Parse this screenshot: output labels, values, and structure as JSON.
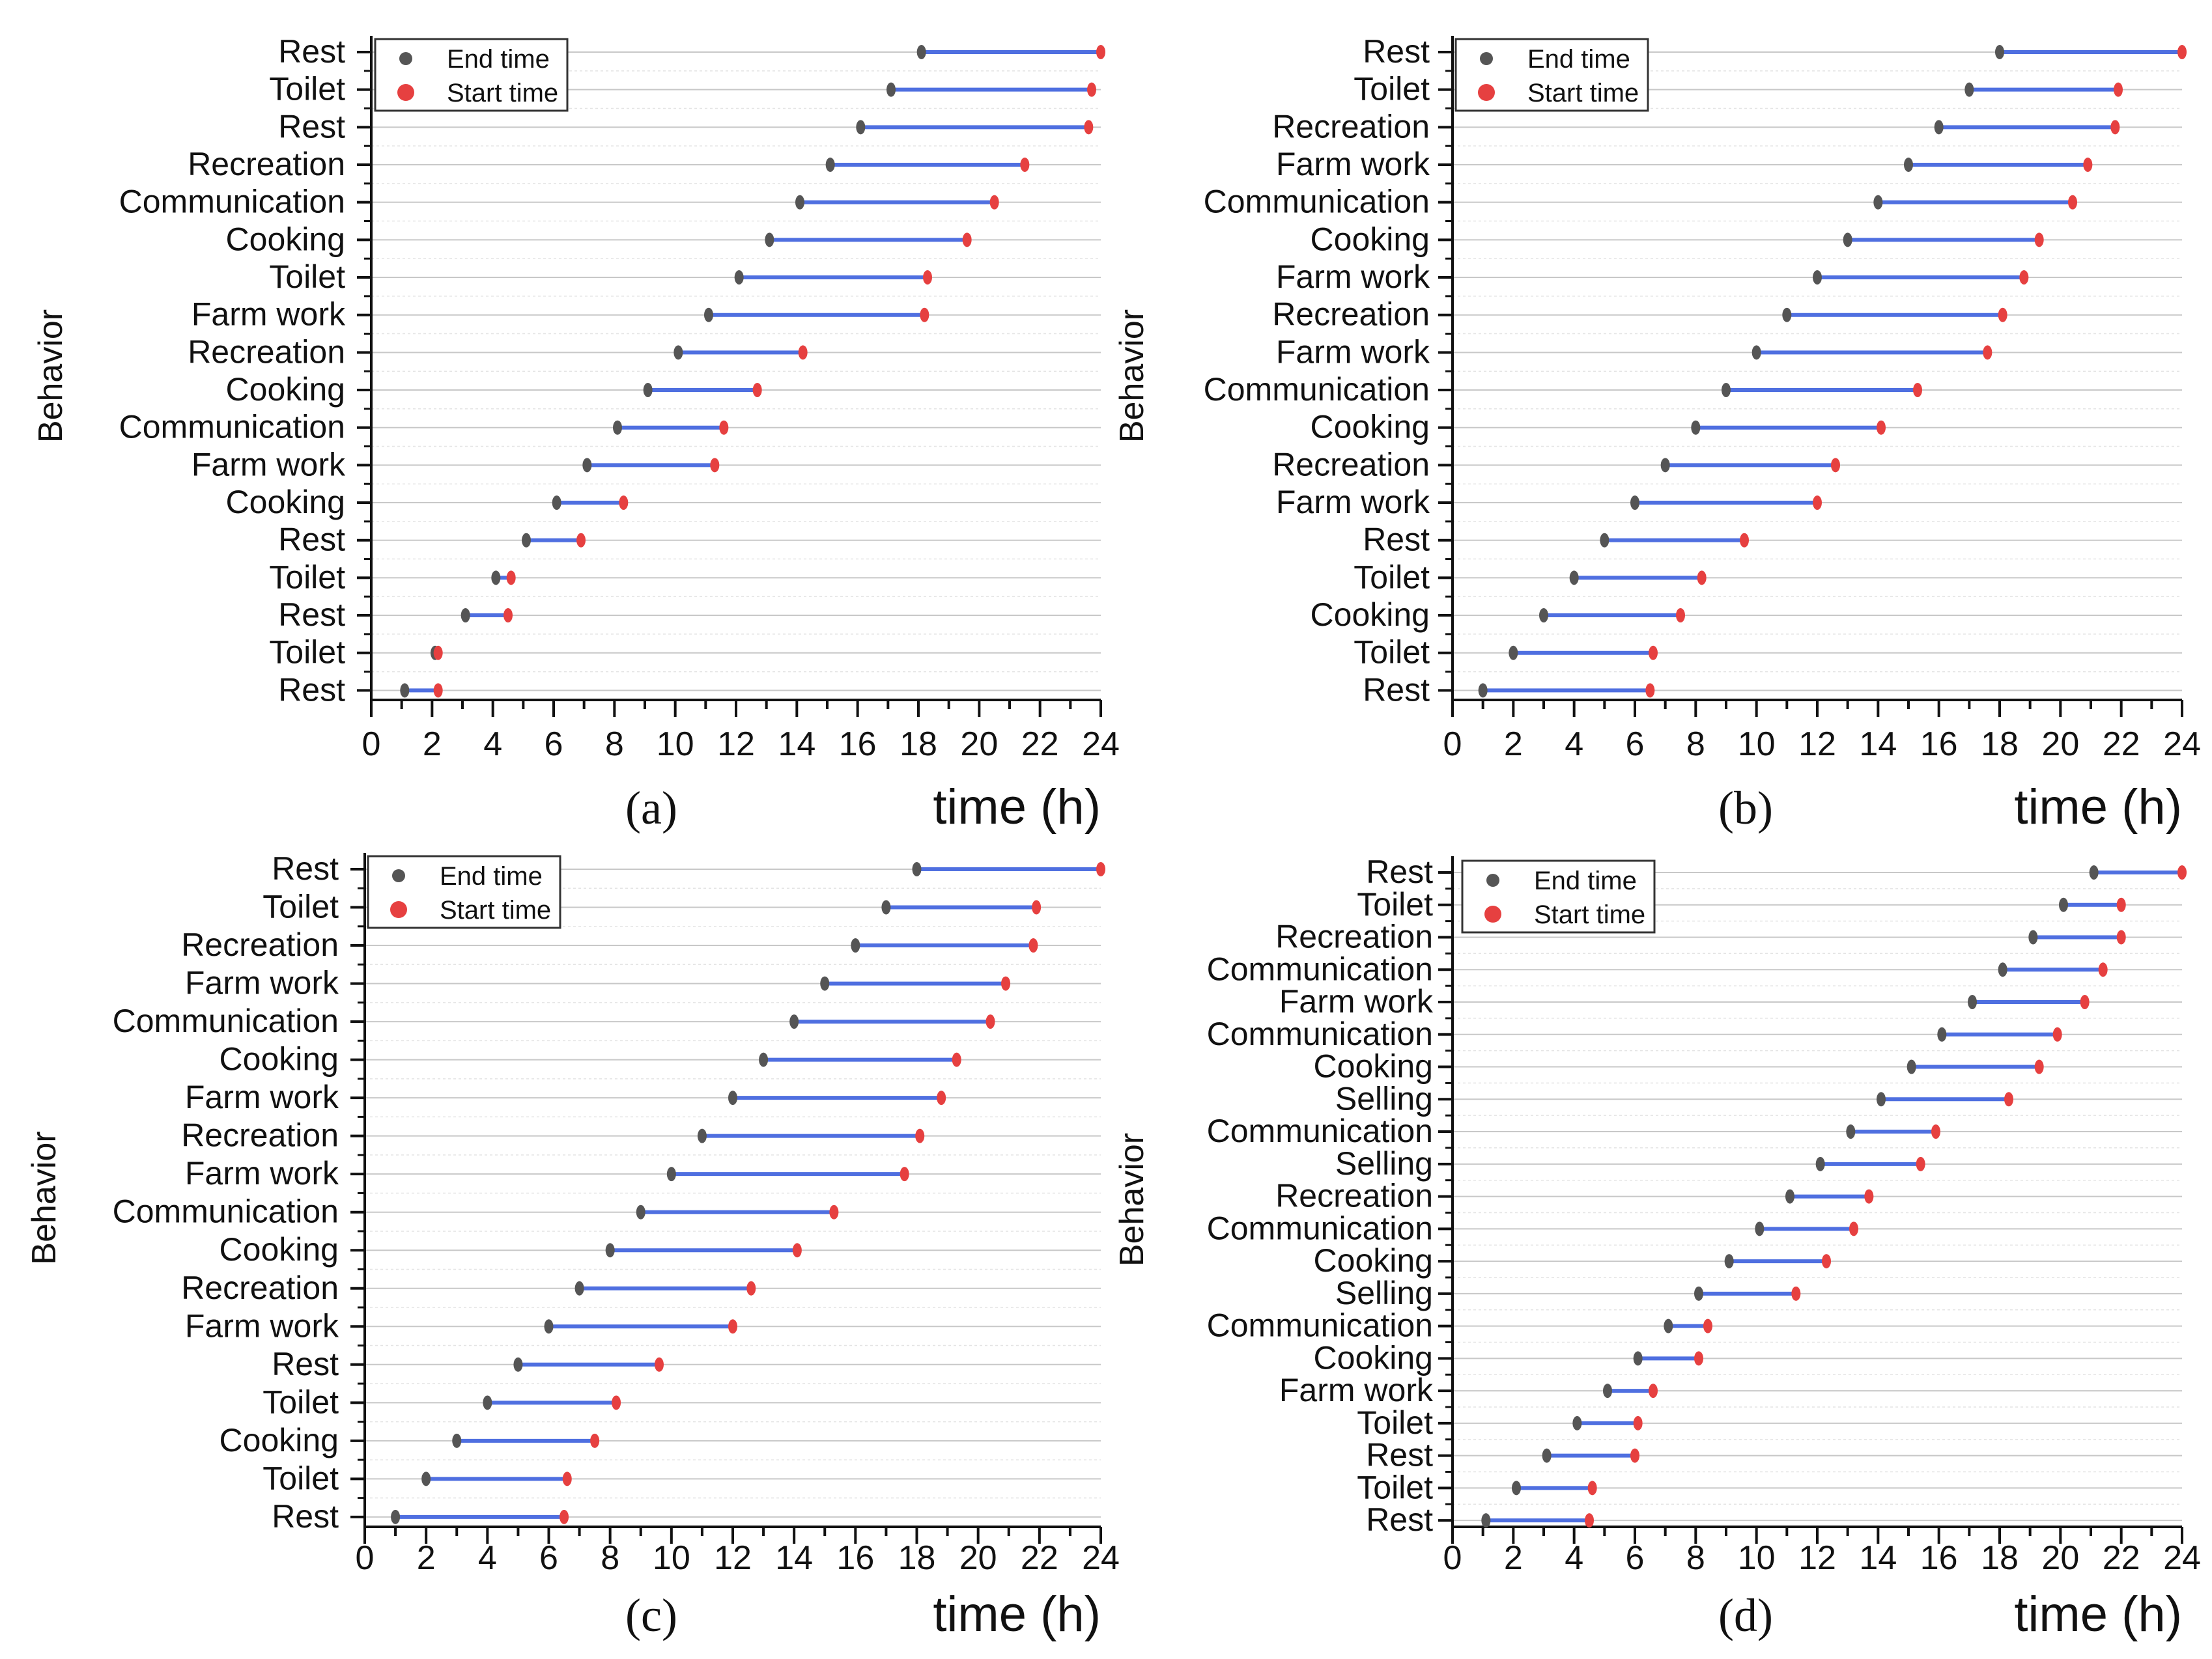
{
  "figure": {
    "colors": {
      "segment": "#4f6fe0",
      "end_marker": "#555555",
      "start_marker": "#e64040",
      "axis": "#111111",
      "grid": "#c8c8c8"
    }
  },
  "chart_data": [
    {
      "id": "a",
      "type": "range-bar",
      "panel_label": "(a)",
      "xlabel": "time (h)",
      "ylabel": "Behavior",
      "xlim": [
        0,
        24
      ],
      "xticks": [
        "0",
        "2",
        "4",
        "6",
        "8",
        "10",
        "12",
        "14",
        "16",
        "18",
        "20",
        "22",
        "24"
      ],
      "legend": {
        "position": "top-left",
        "entries": [
          "End time",
          "Start time"
        ]
      },
      "grid": true,
      "categories": [
        "Rest",
        "Toilet",
        "Rest",
        "Recreation",
        "Communication",
        "Cooking",
        "Toilet",
        "Farm work",
        "Recreation",
        "Cooking",
        "Communication",
        "Farm work",
        "Cooking",
        "Rest",
        "Toilet",
        "Rest",
        "Toilet",
        "Rest"
      ],
      "end_time": [
        18.1,
        17.1,
        16.1,
        15.1,
        14.1,
        13.1,
        12.1,
        11.1,
        10.1,
        9.1,
        8.1,
        7.1,
        6.1,
        5.1,
        4.1,
        3.1,
        2.1,
        1.1
      ],
      "start_time": [
        24.0,
        23.7,
        23.6,
        21.5,
        20.5,
        19.6,
        18.3,
        18.2,
        14.2,
        12.7,
        11.6,
        11.3,
        8.3,
        6.9,
        4.6,
        4.5,
        2.2,
        2.2
      ]
    },
    {
      "id": "b",
      "type": "range-bar",
      "panel_label": "(b)",
      "xlabel": "time (h)",
      "ylabel": "Behavior",
      "xlim": [
        0,
        24
      ],
      "xticks": [
        "0",
        "2",
        "4",
        "6",
        "8",
        "10",
        "12",
        "14",
        "16",
        "18",
        "20",
        "22",
        "24"
      ],
      "legend": {
        "position": "top-left",
        "entries": [
          "End time",
          "Start time"
        ]
      },
      "grid": true,
      "categories": [
        "Rest",
        "Toilet",
        "Recreation",
        "Farm work",
        "Communication",
        "Cooking",
        "Farm work",
        "Recreation",
        "Farm work",
        "Communication",
        "Cooking",
        "Recreation",
        "Farm work",
        "Rest",
        "Toilet",
        "Cooking",
        "Toilet",
        "Rest"
      ],
      "end_time": [
        18.0,
        17.0,
        16.0,
        15.0,
        14.0,
        13.0,
        12.0,
        11.0,
        10.0,
        9.0,
        8.0,
        7.0,
        6.0,
        5.0,
        4.0,
        3.0,
        2.0,
        1.0
      ],
      "start_time": [
        24.0,
        21.9,
        21.8,
        20.9,
        20.4,
        19.3,
        18.8,
        18.1,
        17.6,
        15.3,
        14.1,
        12.6,
        12.0,
        9.6,
        8.2,
        7.5,
        6.6,
        6.5
      ]
    },
    {
      "id": "c",
      "type": "range-bar",
      "panel_label": "(c)",
      "xlabel": "time (h)",
      "ylabel": "Behavior",
      "xlim": [
        0,
        24
      ],
      "xticks": [
        "0",
        "2",
        "4",
        "6",
        "8",
        "10",
        "12",
        "14",
        "16",
        "18",
        "20",
        "22",
        "24"
      ],
      "legend": {
        "position": "top-left",
        "entries": [
          "End time",
          "Start time"
        ]
      },
      "grid": true,
      "categories": [
        "Rest",
        "Toilet",
        "Recreation",
        "Farm work",
        "Communication",
        "Cooking",
        "Farm work",
        "Recreation",
        "Farm work",
        "Communication",
        "Cooking",
        "Recreation",
        "Farm work",
        "Rest",
        "Toilet",
        "Cooking",
        "Toilet",
        "Rest"
      ],
      "end_time": [
        18.0,
        17.0,
        16.0,
        15.0,
        14.0,
        13.0,
        12.0,
        11.0,
        10.0,
        9.0,
        8.0,
        7.0,
        6.0,
        5.0,
        4.0,
        3.0,
        2.0,
        1.0
      ],
      "start_time": [
        24.0,
        21.9,
        21.8,
        20.9,
        20.4,
        19.3,
        18.8,
        18.1,
        17.6,
        15.3,
        14.1,
        12.6,
        12.0,
        9.6,
        8.2,
        7.5,
        6.6,
        6.5
      ]
    },
    {
      "id": "d",
      "type": "range-bar",
      "panel_label": "(d)",
      "xlabel": "time (h)",
      "ylabel": "Behavior",
      "xlim": [
        0,
        24
      ],
      "xticks": [
        "0",
        "2",
        "4",
        "6",
        "8",
        "10",
        "12",
        "14",
        "16",
        "18",
        "20",
        "22",
        "24"
      ],
      "legend": {
        "position": "top-left",
        "entries": [
          "End time",
          "Start time"
        ]
      },
      "grid": true,
      "categories": [
        "Rest",
        "Toilet",
        "Recreation",
        "Communication",
        "Farm work",
        "Communication",
        "Cooking",
        "Selling",
        "Communication",
        "Selling",
        "Recreation",
        "Communication",
        "Cooking",
        "Selling",
        "Communication",
        "Cooking",
        "Farm work",
        "Toilet",
        "Rest",
        "Toilet",
        "Rest"
      ],
      "end_time": [
        21.1,
        20.1,
        19.1,
        18.1,
        17.1,
        16.1,
        15.1,
        14.1,
        13.1,
        12.1,
        11.1,
        10.1,
        9.1,
        8.1,
        7.1,
        6.1,
        5.1,
        4.1,
        3.1,
        2.1,
        1.1
      ],
      "start_time": [
        24.0,
        22.0,
        22.0,
        21.4,
        20.8,
        19.9,
        19.3,
        18.3,
        15.9,
        15.4,
        13.7,
        13.2,
        12.3,
        11.3,
        8.4,
        8.1,
        6.6,
        6.1,
        6.0,
        4.6,
        4.5
      ]
    }
  ]
}
